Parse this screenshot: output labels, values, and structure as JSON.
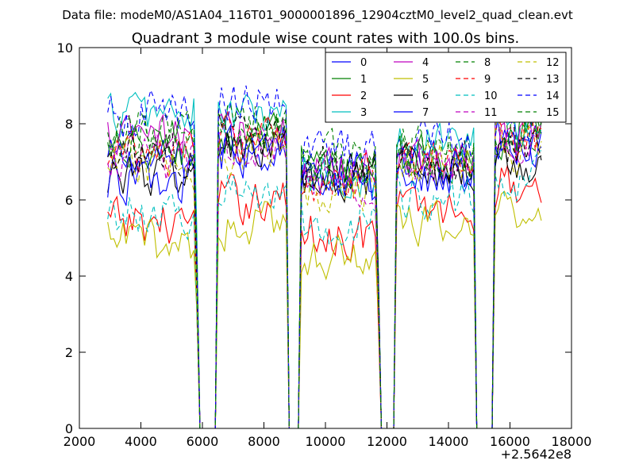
{
  "header": {
    "suptitle": "Data file: modeM0/AS1A04_116T01_9000001896_12904cztM0_level2_quad_clean.evt"
  },
  "chart_data": {
    "type": "line",
    "title": "Quadrant 3 module wise count rates with 100.0s bins.",
    "xlabel": "",
    "ylabel": "",
    "x_offset_label": "+2.5642e8",
    "xlim": [
      2000,
      18000
    ],
    "ylim": [
      0,
      10
    ],
    "x_ticks": [
      2000,
      4000,
      6000,
      8000,
      10000,
      12000,
      14000,
      16000,
      18000
    ],
    "y_ticks": [
      0,
      2,
      4,
      6,
      8,
      10
    ],
    "x_tick_labels": [
      "2000",
      "4000",
      "6000",
      "8000",
      "10000",
      "12000",
      "14000",
      "16000",
      "18000"
    ],
    "y_tick_labels": [
      "0",
      "2",
      "4",
      "6",
      "8",
      "10"
    ],
    "grid": false,
    "legend": {
      "placement": "top-right",
      "columns": 4
    },
    "x_start": 2920,
    "x_end": 17020,
    "x_step": 100,
    "segments": [
      {
        "x_start": 2920,
        "x_end": 5720
      },
      {
        "x_start": 6520,
        "x_end": 8720
      },
      {
        "x_start": 9220,
        "x_end": 11620
      },
      {
        "x_start": 12320,
        "x_end": 14820
      },
      {
        "x_start": 15520,
        "x_end": 17020
      }
    ],
    "zero_intervals": [
      [
        5920,
        6420
      ],
      [
        8820,
        9120
      ],
      [
        11820,
        12220
      ],
      [
        14920,
        15420
      ]
    ],
    "series": [
      {
        "name": "0",
        "color": "#0000ff",
        "style": "solid",
        "segment_levels": [
          7.0,
          7.4,
          6.7,
          6.9,
          7.6
        ]
      },
      {
        "name": "1",
        "color": "#008000",
        "style": "solid",
        "segment_levels": [
          7.3,
          7.6,
          6.8,
          7.1,
          7.8
        ]
      },
      {
        "name": "2",
        "color": "#ff0000",
        "style": "solid",
        "segment_levels": [
          5.4,
          6.0,
          5.1,
          5.8,
          6.4
        ]
      },
      {
        "name": "3",
        "color": "#00bfbf",
        "style": "solid",
        "segment_levels": [
          8.3,
          8.2,
          6.6,
          7.6,
          7.9
        ]
      },
      {
        "name": "4",
        "color": "#bf00bf",
        "style": "solid",
        "segment_levels": [
          7.6,
          7.8,
          6.9,
          7.1,
          7.7
        ]
      },
      {
        "name": "5",
        "color": "#bfbf00",
        "style": "solid",
        "segment_levels": [
          4.9,
          5.3,
          4.6,
          5.3,
          5.8
        ]
      },
      {
        "name": "6",
        "color": "#000000",
        "style": "solid",
        "segment_levels": [
          6.7,
          7.3,
          6.4,
          6.8,
          7.1
        ]
      },
      {
        "name": "7",
        "color": "#0000ff",
        "style": "solid",
        "segment_levels": [
          6.5,
          7.2,
          6.3,
          6.7,
          7.3
        ]
      },
      {
        "name": "8",
        "color": "#008000",
        "style": "dashed",
        "segment_levels": [
          7.8,
          8.0,
          7.1,
          7.3,
          7.9
        ]
      },
      {
        "name": "9",
        "color": "#ff0000",
        "style": "dashed",
        "segment_levels": [
          7.2,
          7.6,
          6.6,
          7.1,
          7.6
        ]
      },
      {
        "name": "10",
        "color": "#00bfbf",
        "style": "dashed",
        "segment_levels": [
          5.7,
          6.2,
          5.4,
          6.1,
          6.5
        ]
      },
      {
        "name": "11",
        "color": "#bf00bf",
        "style": "dashed",
        "segment_levels": [
          7.1,
          7.5,
          6.5,
          7.0,
          7.5
        ]
      },
      {
        "name": "12",
        "color": "#bfbf00",
        "style": "dashed",
        "segment_levels": [
          6.9,
          7.4,
          6.3,
          6.9,
          7.4
        ]
      },
      {
        "name": "13",
        "color": "#000000",
        "style": "dashed",
        "segment_levels": [
          7.1,
          7.7,
          6.7,
          7.0,
          7.6
        ]
      },
      {
        "name": "14",
        "color": "#0000ff",
        "style": "dashed",
        "segment_levels": [
          8.2,
          8.6,
          7.2,
          7.6,
          8.2
        ]
      },
      {
        "name": "15",
        "color": "#008000",
        "style": "dashed",
        "segment_levels": [
          7.6,
          7.9,
          6.9,
          7.2,
          7.8
        ]
      }
    ]
  }
}
